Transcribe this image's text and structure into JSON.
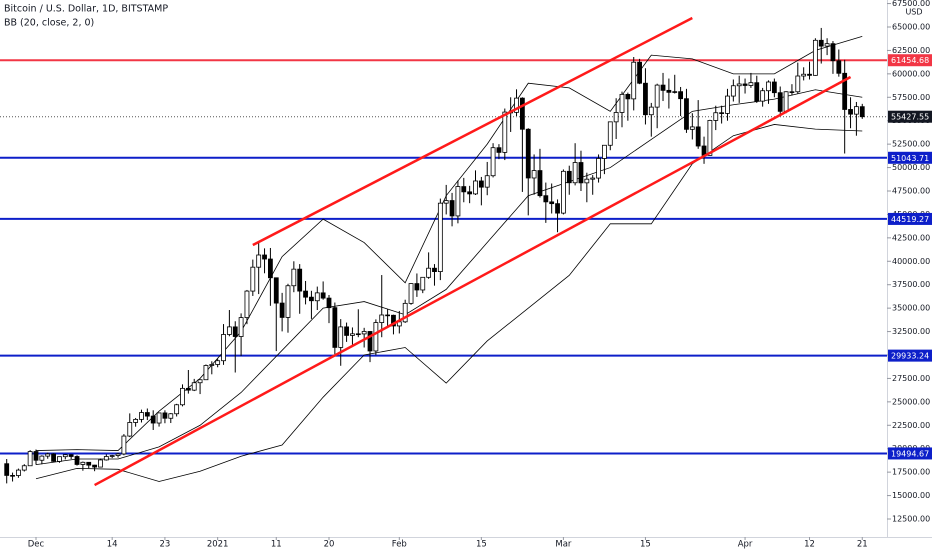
{
  "chart_data": {
    "type": "candlestick",
    "title": "Bitcoin / U.S. Dollar, 1D, BITSTAMP",
    "currency": "USD",
    "up_color": "#ffffff",
    "down_color": "#000000",
    "grid": false,
    "ylim": [
      10579,
      67881
    ],
    "yticks": [
      {
        "value": 12500,
        "label": "12500.00"
      },
      {
        "value": 15000,
        "label": "15000.00"
      },
      {
        "value": 17500,
        "label": "17500.00"
      },
      {
        "value": 20000,
        "label": "20000.00"
      },
      {
        "value": 22500,
        "label": "22500.00"
      },
      {
        "value": 25000,
        "label": "25000.00"
      },
      {
        "value": 27500,
        "label": "27500.00"
      },
      {
        "value": 30000,
        "label": "30000.00"
      },
      {
        "value": 32500,
        "label": "32500.00"
      },
      {
        "value": 35000,
        "label": "35000.00"
      },
      {
        "value": 37500,
        "label": "37500.00"
      },
      {
        "value": 40000,
        "label": "40000.00"
      },
      {
        "value": 42500,
        "label": "42500.00"
      },
      {
        "value": 45000,
        "label": "45000.00"
      },
      {
        "value": 47500,
        "label": "47500.00"
      },
      {
        "value": 50000,
        "label": "50000.00"
      },
      {
        "value": 52500,
        "label": "52500.00"
      },
      {
        "value": 55000,
        "label": "55000.00"
      },
      {
        "value": 57500,
        "label": "57500.00"
      },
      {
        "value": 60000,
        "label": "60000.00"
      },
      {
        "value": 62500,
        "label": "62500.00"
      },
      {
        "value": 65000,
        "label": "65000.00"
      },
      {
        "value": 67500,
        "label": "67500.00"
      }
    ],
    "xticks": [
      {
        "value": "Dec 01",
        "label": "Dec"
      },
      {
        "value": "Dec 14",
        "label": "14"
      },
      {
        "value": "Dec 23",
        "label": "23"
      },
      {
        "value": "Jan 01",
        "label": "2021"
      },
      {
        "value": "Jan 11",
        "label": "11"
      },
      {
        "value": "Jan 20",
        "label": "20"
      },
      {
        "value": "Feb 01",
        "label": "Feb"
      },
      {
        "value": "Feb 15",
        "label": "15"
      },
      {
        "value": "Mar 01",
        "label": "Mar"
      },
      {
        "value": "Mar 15",
        "label": "15"
      },
      {
        "value": "Apr 01",
        "label": "Apr"
      },
      {
        "value": "Apr 12",
        "label": "12"
      },
      {
        "value": "Apr 21",
        "label": "21"
      }
    ],
    "categories": [
      "Nov 26",
      "Nov 27",
      "Nov 28",
      "Nov 29",
      "Nov 30",
      "Dec 01",
      "Dec 02",
      "Dec 03",
      "Dec 04",
      "Dec 05",
      "Dec 06",
      "Dec 07",
      "Dec 08",
      "Dec 09",
      "Dec 10",
      "Dec 11",
      "Dec 12",
      "Dec 13",
      "Dec 14",
      "Dec 15",
      "Dec 16",
      "Dec 17",
      "Dec 18",
      "Dec 19",
      "Dec 20",
      "Dec 21",
      "Dec 22",
      "Dec 23",
      "Dec 24",
      "Dec 25",
      "Dec 26",
      "Dec 27",
      "Dec 28",
      "Dec 29",
      "Dec 30",
      "Dec 31",
      "Jan 01",
      "Jan 02",
      "Jan 03",
      "Jan 04",
      "Jan 05",
      "Jan 06",
      "Jan 07",
      "Jan 08",
      "Jan 09",
      "Jan 10",
      "Jan 11",
      "Jan 12",
      "Jan 13",
      "Jan 14",
      "Jan 15",
      "Jan 16",
      "Jan 17",
      "Jan 18",
      "Jan 19",
      "Jan 20",
      "Jan 21",
      "Jan 22",
      "Jan 23",
      "Jan 24",
      "Jan 25",
      "Jan 26",
      "Jan 27",
      "Jan 28",
      "Jan 29",
      "Jan 30",
      "Jan 31",
      "Feb 01",
      "Feb 02",
      "Feb 03",
      "Feb 04",
      "Feb 05",
      "Feb 06",
      "Feb 07",
      "Feb 08",
      "Feb 09",
      "Feb 10",
      "Feb 11",
      "Feb 12",
      "Feb 13",
      "Feb 14",
      "Feb 15",
      "Feb 16",
      "Feb 17",
      "Feb 18",
      "Feb 19",
      "Feb 20",
      "Feb 21",
      "Feb 22",
      "Feb 23",
      "Feb 24",
      "Feb 25",
      "Feb 26",
      "Feb 27",
      "Feb 28",
      "Mar 01",
      "Mar 02",
      "Mar 03",
      "Mar 04",
      "Mar 05",
      "Mar 06",
      "Mar 07",
      "Mar 08",
      "Mar 09",
      "Mar 10",
      "Mar 11",
      "Mar 12",
      "Mar 13",
      "Mar 14",
      "Mar 15",
      "Mar 16",
      "Mar 17",
      "Mar 18",
      "Mar 19",
      "Mar 20",
      "Mar 21",
      "Mar 22",
      "Mar 23",
      "Mar 24",
      "Mar 25",
      "Mar 26",
      "Mar 27",
      "Mar 28",
      "Mar 29",
      "Mar 30",
      "Mar 31",
      "Apr 01",
      "Apr 02",
      "Apr 03",
      "Apr 04",
      "Apr 05",
      "Apr 06",
      "Apr 07",
      "Apr 08",
      "Apr 09",
      "Apr 10",
      "Apr 11",
      "Apr 12",
      "Apr 13",
      "Apr 14",
      "Apr 15",
      "Apr 16",
      "Apr 17",
      "Apr 18",
      "Apr 19",
      "Apr 20",
      "Apr 21"
    ],
    "ohlc": [
      [
        18400,
        18900,
        16300,
        17150
      ],
      [
        17150,
        17450,
        16500,
        17140
      ],
      [
        17140,
        17880,
        16900,
        17720
      ],
      [
        17720,
        18350,
        17570,
        18180
      ],
      [
        18180,
        19850,
        18180,
        19700
      ],
      [
        19700,
        19920,
        18300,
        18770
      ],
      [
        18770,
        19300,
        18340,
        19210
      ],
      [
        19210,
        19580,
        18930,
        19440
      ],
      [
        19440,
        19520,
        18600,
        18650
      ],
      [
        18650,
        19170,
        18500,
        19150
      ],
      [
        19150,
        19420,
        18860,
        19360
      ],
      [
        19360,
        19410,
        18900,
        19170
      ],
      [
        19170,
        19300,
        18200,
        18320
      ],
      [
        18320,
        18630,
        17650,
        18550
      ],
      [
        18550,
        18560,
        17920,
        18250
      ],
      [
        18250,
        18280,
        17600,
        18040
      ],
      [
        18040,
        18950,
        18020,
        18800
      ],
      [
        18800,
        19400,
        18730,
        19170
      ],
      [
        19170,
        19340,
        19000,
        19270
      ],
      [
        19270,
        19560,
        19050,
        19440
      ],
      [
        19440,
        21560,
        19300,
        21350
      ],
      [
        21350,
        23770,
        21240,
        22800
      ],
      [
        22800,
        23280,
        22350,
        23130
      ],
      [
        23130,
        24170,
        22800,
        23860
      ],
      [
        23860,
        24290,
        23060,
        23480
      ],
      [
        23480,
        24100,
        22000,
        22740
      ],
      [
        22740,
        23840,
        22360,
        23820
      ],
      [
        23820,
        24100,
        22720,
        23250
      ],
      [
        23250,
        23800,
        22740,
        23730
      ],
      [
        23730,
        24790,
        23440,
        24690
      ],
      [
        24690,
        26870,
        24520,
        26440
      ],
      [
        26440,
        28400,
        25880,
        26250
      ],
      [
        26250,
        27450,
        26150,
        27040
      ],
      [
        27040,
        27400,
        25830,
        27360
      ],
      [
        27360,
        28990,
        27330,
        28880
      ],
      [
        28880,
        29330,
        27940,
        28990
      ],
      [
        28990,
        29600,
        28690,
        29390
      ],
      [
        29390,
        33300,
        28950,
        32190
      ],
      [
        32190,
        34800,
        32000,
        33000
      ],
      [
        33000,
        33600,
        28130,
        31970
      ],
      [
        31970,
        34440,
        29900,
        33990
      ],
      [
        33990,
        36940,
        33290,
        36820
      ],
      [
        36820,
        40180,
        36300,
        39370
      ],
      [
        39370,
        41950,
        36500,
        40670
      ],
      [
        40670,
        41380,
        38720,
        40240
      ],
      [
        40240,
        41420,
        35250,
        38240
      ],
      [
        38240,
        38250,
        30420,
        35540
      ],
      [
        35540,
        36630,
        32520,
        34010
      ],
      [
        34010,
        37600,
        32380,
        37390
      ],
      [
        37390,
        40000,
        36700,
        39160
      ],
      [
        39160,
        39700,
        34400,
        36820
      ],
      [
        36820,
        37900,
        35400,
        36170
      ],
      [
        36170,
        36850,
        33850,
        35790
      ],
      [
        35790,
        37300,
        34800,
        36630
      ],
      [
        36630,
        37850,
        35900,
        36070
      ],
      [
        36070,
        36400,
        33400,
        35050
      ],
      [
        35050,
        35600,
        30070,
        30810
      ],
      [
        30810,
        33830,
        28850,
        33000
      ],
      [
        33000,
        33460,
        31400,
        32090
      ],
      [
        32090,
        32940,
        31100,
        32260
      ],
      [
        32260,
        34880,
        31900,
        32250
      ],
      [
        32250,
        32900,
        30800,
        32510
      ],
      [
        32510,
        32560,
        29240,
        30430
      ],
      [
        30430,
        33800,
        29980,
        33460
      ],
      [
        33460,
        38530,
        31900,
        34270
      ],
      [
        34270,
        34900,
        32880,
        34240
      ],
      [
        34240,
        34300,
        32200,
        33100
      ],
      [
        33100,
        34700,
        32300,
        33540
      ],
      [
        33540,
        35900,
        33420,
        35510
      ],
      [
        35510,
        37650,
        35360,
        37620
      ],
      [
        37620,
        38700,
        36200,
        36940
      ],
      [
        36940,
        38300,
        36600,
        38290
      ],
      [
        38290,
        40950,
        38130,
        39260
      ],
      [
        39260,
        39700,
        37400,
        38900
      ],
      [
        38900,
        46690,
        37990,
        46200
      ],
      [
        46200,
        48150,
        45000,
        46480
      ],
      [
        46480,
        47300,
        43730,
        44840
      ],
      [
        44840,
        48630,
        44050,
        47970
      ],
      [
        47970,
        48900,
        46300,
        47410
      ],
      [
        47410,
        48050,
        46200,
        47190
      ],
      [
        47190,
        49700,
        47070,
        48570
      ],
      [
        48570,
        49000,
        45970,
        47910
      ],
      [
        47910,
        50600,
        47050,
        49130
      ],
      [
        49130,
        52600,
        48950,
        52120
      ],
      [
        52120,
        52500,
        50900,
        51620
      ],
      [
        51620,
        56300,
        50800,
        55920
      ],
      [
        55920,
        57500,
        53800,
        55890
      ],
      [
        55890,
        58350,
        55500,
        57410
      ],
      [
        57410,
        57500,
        47400,
        54090
      ],
      [
        54090,
        54200,
        44900,
        48890
      ],
      [
        48890,
        51400,
        47100,
        49680
      ],
      [
        49680,
        52000,
        46800,
        47000
      ],
      [
        47000,
        48400,
        44100,
        46340
      ],
      [
        46340,
        48300,
        45100,
        46150
      ],
      [
        46150,
        46600,
        43100,
        45140
      ],
      [
        45140,
        49800,
        45000,
        49600
      ],
      [
        49600,
        50200,
        47100,
        48380
      ],
      [
        48380,
        52600,
        48100,
        50540
      ],
      [
        50540,
        51800,
        47500,
        48370
      ],
      [
        48370,
        49450,
        46300,
        48760
      ],
      [
        48760,
        49200,
        47100,
        48880
      ],
      [
        48880,
        51400,
        48400,
        50970
      ],
      [
        50970,
        52400,
        49300,
        52380
      ],
      [
        52380,
        54900,
        51850,
        54880
      ],
      [
        54880,
        57400,
        53050,
        55880
      ],
      [
        55880,
        58100,
        54300,
        57810
      ],
      [
        57810,
        58000,
        55000,
        57330
      ],
      [
        57330,
        61800,
        56100,
        61240
      ],
      [
        61240,
        61600,
        58900,
        59000
      ],
      [
        59000,
        60600,
        54600,
        55640
      ],
      [
        55640,
        56900,
        53300,
        56450
      ],
      [
        56450,
        58950,
        54200,
        58800
      ],
      [
        58800,
        60100,
        57100,
        58240
      ],
      [
        58240,
        59500,
        56300,
        58030
      ],
      [
        58030,
        59900,
        57900,
        58100
      ],
      [
        58100,
        58600,
        55500,
        57350
      ],
      [
        57350,
        58400,
        53700,
        54080
      ],
      [
        54080,
        55800,
        53000,
        54340
      ],
      [
        54340,
        57200,
        52000,
        52300
      ],
      [
        52300,
        53300,
        50400,
        51300
      ],
      [
        51300,
        55100,
        51300,
        55030
      ],
      [
        55030,
        56600,
        54000,
        55850
      ],
      [
        55850,
        56600,
        54700,
        55780
      ],
      [
        55780,
        58400,
        55000,
        57630
      ],
      [
        57630,
        59400,
        57050,
        58730
      ],
      [
        58730,
        59800,
        56900,
        58920
      ],
      [
        58920,
        59500,
        57900,
        58760
      ],
      [
        58760,
        60100,
        58500,
        59060
      ],
      [
        59060,
        59800,
        56900,
        57090
      ],
      [
        57090,
        58500,
        56500,
        58200
      ],
      [
        58200,
        59300,
        56800,
        59130
      ],
      [
        59130,
        59500,
        57500,
        57990
      ],
      [
        57990,
        58650,
        55500,
        56000
      ],
      [
        56000,
        58150,
        55800,
        58090
      ],
      [
        58090,
        58900,
        57700,
        58090
      ],
      [
        58090,
        61200,
        57900,
        59770
      ],
      [
        59770,
        60700,
        59300,
        59960
      ],
      [
        59960,
        61300,
        59400,
        59840
      ],
      [
        59840,
        63800,
        59800,
        63580
      ],
      [
        63580,
        64900,
        61100,
        62960
      ],
      [
        62960,
        63800,
        62000,
        63220
      ],
      [
        63220,
        63500,
        60000,
        61400
      ],
      [
        61400,
        62600,
        59700,
        60060
      ],
      [
        60060,
        61500,
        51500,
        56200
      ],
      [
        56200,
        57500,
        54200,
        55700
      ],
      [
        55700,
        57000,
        53400,
        56500
      ],
      [
        56500,
        56800,
        55200,
        55427.55
      ]
    ],
    "bollinger": {
      "name": "BB (20, close, 2, 0)",
      "color": "#000000",
      "x": [
        "Dec 01",
        "Dec 08",
        "Dec 15",
        "Dec 22",
        "Dec 29",
        "Jan 05",
        "Jan 12",
        "Jan 19",
        "Jan 26",
        "Feb 02",
        "Feb 09",
        "Feb 16",
        "Feb 23",
        "Mar 02",
        "Mar 09",
        "Mar 16",
        "Mar 23",
        "Mar 30",
        "Apr 06",
        "Apr 13",
        "Apr 21"
      ],
      "upper": [
        19800,
        19900,
        19800,
        24000,
        27500,
        32500,
        40500,
        44500,
        42000,
        37700,
        47000,
        52500,
        59000,
        58500,
        56000,
        62000,
        61600,
        60000,
        60000,
        62500,
        64000
      ],
      "basis": [
        18300,
        18900,
        18900,
        20200,
        22500,
        26000,
        30500,
        35000,
        35700,
        34300,
        37000,
        42000,
        47000,
        48500,
        50000,
        53000,
        56000,
        56700,
        57300,
        58300,
        57500
      ],
      "lower": [
        16800,
        17900,
        17800,
        16500,
        17600,
        19200,
        20400,
        25500,
        30000,
        30800,
        27000,
        31500,
        35000,
        38500,
        44000,
        44000,
        50400,
        53400,
        54600,
        54100,
        53900
      ]
    },
    "trend_lines": [
      {
        "color": "#ff1a1a",
        "x": [
          "Jan 07",
          "Mar 23"
        ],
        "y": [
          41734,
          65960
        ]
      },
      {
        "color": "#ff1a1a",
        "x": [
          "Dec 11",
          "Apr 19"
        ],
        "y": [
          16120,
          59663
        ]
      }
    ],
    "levels": [
      {
        "value": 61454.68,
        "color": "#f23645"
      },
      {
        "value": 51043.71,
        "color": "#0d1fc9"
      },
      {
        "value": 44519.27,
        "color": "#0d1fc9"
      },
      {
        "value": 29933.24,
        "color": "#0d1fc9"
      },
      {
        "value": 19494.67,
        "color": "#0d1fc9"
      }
    ],
    "last_price": 55427.55
  }
}
